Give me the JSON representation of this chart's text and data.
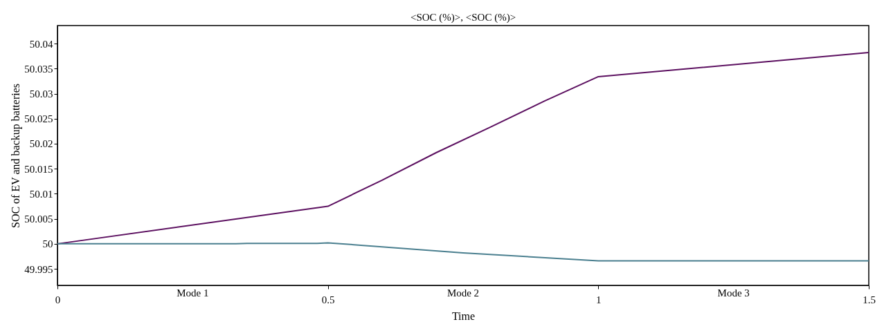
{
  "chart_data": {
    "type": "line",
    "title": "<SOC (%)>, <SOC (%)>",
    "xlabel": "Time",
    "ylabel": "SOC of EV and backup batteries",
    "series": [
      {
        "color": "#5c1060",
        "x": [
          0,
          0.5,
          0.6,
          0.7,
          0.8,
          0.9,
          1,
          1.5
        ],
        "values": [
          50.0,
          50.0075,
          50.0127,
          50.0182,
          50.0233,
          50.0285,
          50.0334,
          50.0382
        ]
      },
      {
        "color": "#4a7f8f",
        "x": [
          0,
          0.33,
          0.35,
          0.48,
          0.5,
          0.6,
          0.75,
          1,
          1.5
        ],
        "values": [
          50.0,
          50.0,
          50.0001,
          50.0001,
          50.0002,
          49.9994,
          49.9982,
          49.9966,
          49.9966
        ]
      }
    ],
    "xlim": [
      0,
      1.5
    ],
    "xticks": [
      0,
      0.5,
      1,
      1.5
    ],
    "ylim": [
      49.9917,
      50.0436
    ],
    "yticks": [
      49.995,
      50,
      50.005,
      50.01,
      50.015,
      50.02,
      50.025,
      50.03,
      50.035,
      50.04
    ],
    "annotations": [
      "Mode 1",
      "Mode 2",
      "Mode 3"
    ],
    "grid": false,
    "marker": "none",
    "line_style": "solid"
  }
}
